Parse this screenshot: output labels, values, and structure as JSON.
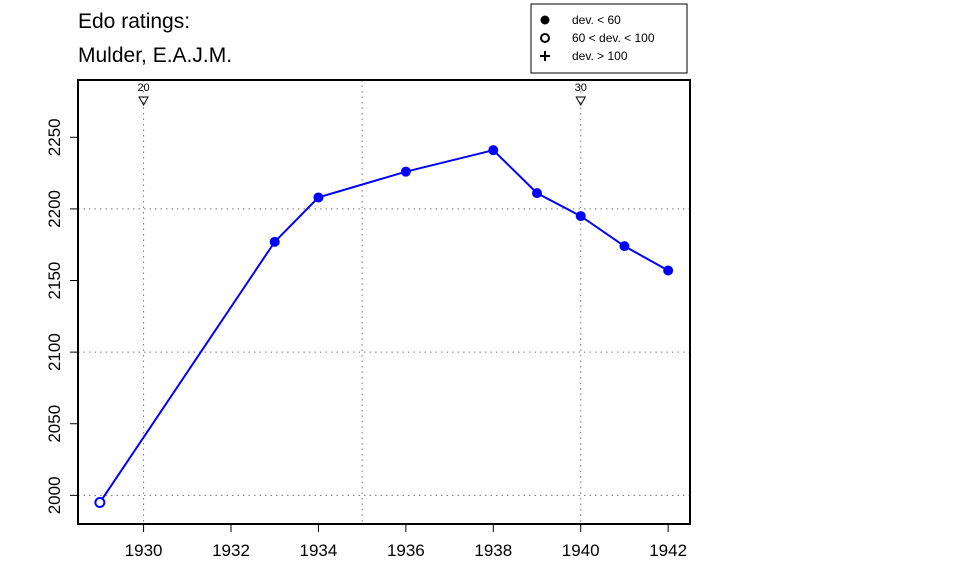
{
  "chart_data": {
    "type": "line",
    "title_lines": [
      "Edo ratings:",
      "Mulder, E.A.J.M."
    ],
    "xlabel": "",
    "ylabel": "",
    "xlim": [
      1928.5,
      1942.5
    ],
    "ylim": [
      1980,
      2290
    ],
    "x_ticks": [
      1930,
      1932,
      1934,
      1936,
      1938,
      1940,
      1942
    ],
    "y_ticks": [
      2000,
      2050,
      2100,
      2150,
      2200,
      2250
    ],
    "x_grid": [
      1930,
      1935,
      1940
    ],
    "y_grid": [
      2000,
      2100,
      2200
    ],
    "grid": true,
    "series": [
      {
        "color": "#0000ff",
        "points": [
          {
            "x": 1929,
            "y": 1995,
            "marker": "open"
          },
          {
            "x": 1933,
            "y": 2177,
            "marker": "filled"
          },
          {
            "x": 1934,
            "y": 2208,
            "marker": "filled"
          },
          {
            "x": 1936,
            "y": 2226,
            "marker": "filled"
          },
          {
            "x": 1938,
            "y": 2241,
            "marker": "filled"
          },
          {
            "x": 1939,
            "y": 2211,
            "marker": "filled"
          },
          {
            "x": 1940,
            "y": 2195,
            "marker": "filled"
          },
          {
            "x": 1941,
            "y": 2174,
            "marker": "filled"
          },
          {
            "x": 1942,
            "y": 2157,
            "marker": "filled"
          }
        ]
      }
    ],
    "top_markers": [
      {
        "x": 1930,
        "label": "20"
      },
      {
        "x": 1940,
        "label": "30"
      }
    ],
    "legend": {
      "position": "top-right",
      "entries": [
        {
          "symbol": "filled",
          "label": "dev. < 60"
        },
        {
          "symbol": "open",
          "label": "60 < dev. < 100"
        },
        {
          "symbol": "plus",
          "label": "dev. > 100"
        }
      ]
    }
  }
}
